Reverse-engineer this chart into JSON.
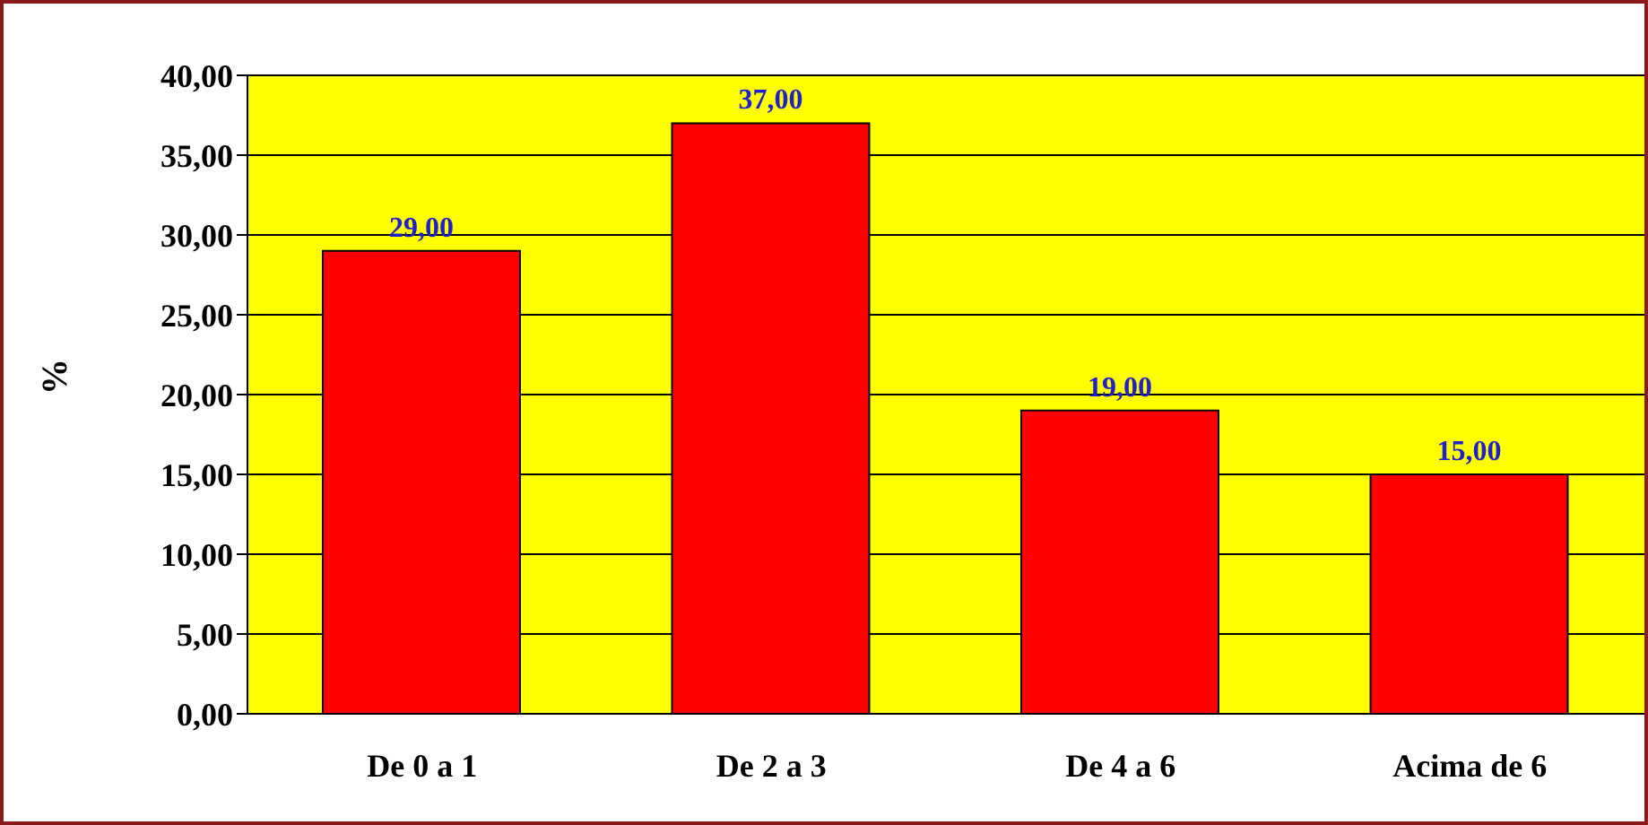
{
  "chart_data": {
    "type": "bar",
    "ylabel": "%",
    "categories": [
      "De 0 a 1",
      "De 2 a 3",
      "De 4 a 6",
      "Acima de 6"
    ],
    "values": [
      29,
      37,
      19,
      15
    ],
    "value_labels": [
      "29,00",
      "37,00",
      "19,00",
      "15,00"
    ],
    "color": "#ff0000",
    "ylim": [
      0,
      40
    ],
    "yticks": [
      {
        "value": 0,
        "label": "0,00"
      },
      {
        "value": 5,
        "label": "5,00"
      },
      {
        "value": 10,
        "label": "10,00"
      },
      {
        "value": 15,
        "label": "15,00"
      },
      {
        "value": 20,
        "label": "20,00"
      },
      {
        "value": 25,
        "label": "25,00"
      },
      {
        "value": 30,
        "label": "30,00"
      },
      {
        "value": 35,
        "label": "35,00"
      },
      {
        "value": 40,
        "label": "40,00"
      }
    ],
    "grid": "y"
  }
}
